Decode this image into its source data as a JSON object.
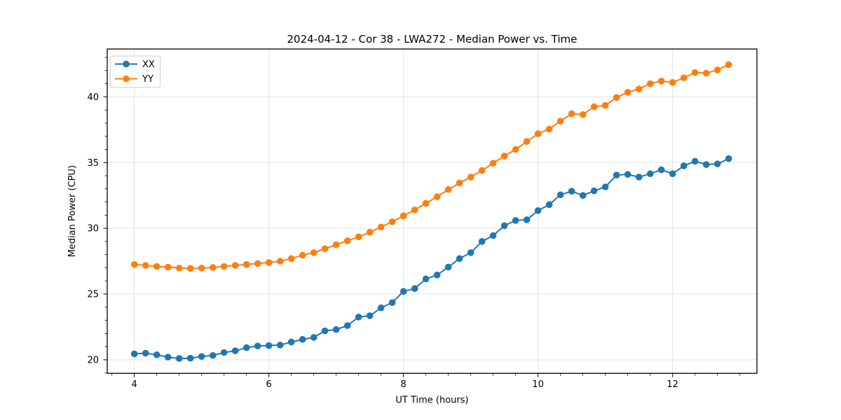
{
  "figure": {
    "background": "#ffffff"
  },
  "chart_data": {
    "type": "line",
    "title": "2024-04-12 - Cor 38 - LWA272 - Median Power vs. Time",
    "xlabel": "UT Time (hours)",
    "ylabel": "Median Power (CPU)",
    "xlim": [
      3.597,
      13.253
    ],
    "ylim": [
      18.97,
      43.64
    ],
    "x_major_ticks": [
      4,
      6,
      8,
      10,
      12
    ],
    "y_major_ticks": [
      20,
      25,
      30,
      35,
      40
    ],
    "x_minor_step": 0.33333,
    "y_minor_step": 1,
    "grid": true,
    "grid_color": "#e2e2e2",
    "spine_color": "#000000",
    "legend_position": "upper-left",
    "marker": "circle",
    "x": [
      4.0,
      4.167,
      4.333,
      4.5,
      4.667,
      4.833,
      5.0,
      5.167,
      5.333,
      5.5,
      5.667,
      5.833,
      6.0,
      6.167,
      6.333,
      6.5,
      6.667,
      6.833,
      7.0,
      7.167,
      7.333,
      7.5,
      7.667,
      7.833,
      8.0,
      8.167,
      8.333,
      8.5,
      8.667,
      8.833,
      9.0,
      9.167,
      9.333,
      9.5,
      9.667,
      9.833,
      10.0,
      10.167,
      10.333,
      10.5,
      10.667,
      10.833,
      11.0,
      11.167,
      11.333,
      11.5,
      11.667,
      11.833,
      12.0,
      12.167,
      12.333,
      12.5,
      12.667,
      12.833
    ],
    "series": [
      {
        "name": "XX",
        "color": "#1f77b4",
        "values": [
          20.45,
          20.5,
          20.38,
          20.2,
          20.1,
          20.12,
          20.25,
          20.33,
          20.55,
          20.68,
          20.92,
          21.05,
          21.08,
          21.12,
          21.35,
          21.55,
          21.7,
          22.2,
          22.3,
          22.6,
          23.25,
          23.35,
          23.95,
          24.35,
          25.2,
          25.42,
          26.15,
          26.45,
          27.05,
          27.7,
          28.15,
          29.0,
          29.45,
          30.2,
          30.6,
          30.65,
          31.35,
          31.8,
          32.55,
          32.82,
          32.5,
          32.85,
          33.15,
          34.05,
          34.1,
          33.9,
          34.15,
          34.45,
          34.15,
          34.75,
          35.1,
          34.85,
          34.9,
          35.3
        ]
      },
      {
        "name": "YY",
        "color": "#ff7f0e",
        "values": [
          27.25,
          27.18,
          27.1,
          27.05,
          26.98,
          26.95,
          26.98,
          27.02,
          27.1,
          27.18,
          27.25,
          27.32,
          27.4,
          27.5,
          27.7,
          27.95,
          28.15,
          28.45,
          28.75,
          29.05,
          29.35,
          29.7,
          30.1,
          30.5,
          30.95,
          31.4,
          31.9,
          32.4,
          32.95,
          33.45,
          33.9,
          34.4,
          34.95,
          35.5,
          36.0,
          36.6,
          37.2,
          37.55,
          38.15,
          38.72,
          38.65,
          39.25,
          39.35,
          39.95,
          40.35,
          40.6,
          41.0,
          41.2,
          41.1,
          41.45,
          41.85,
          41.8,
          42.05,
          42.45
        ]
      }
    ]
  }
}
